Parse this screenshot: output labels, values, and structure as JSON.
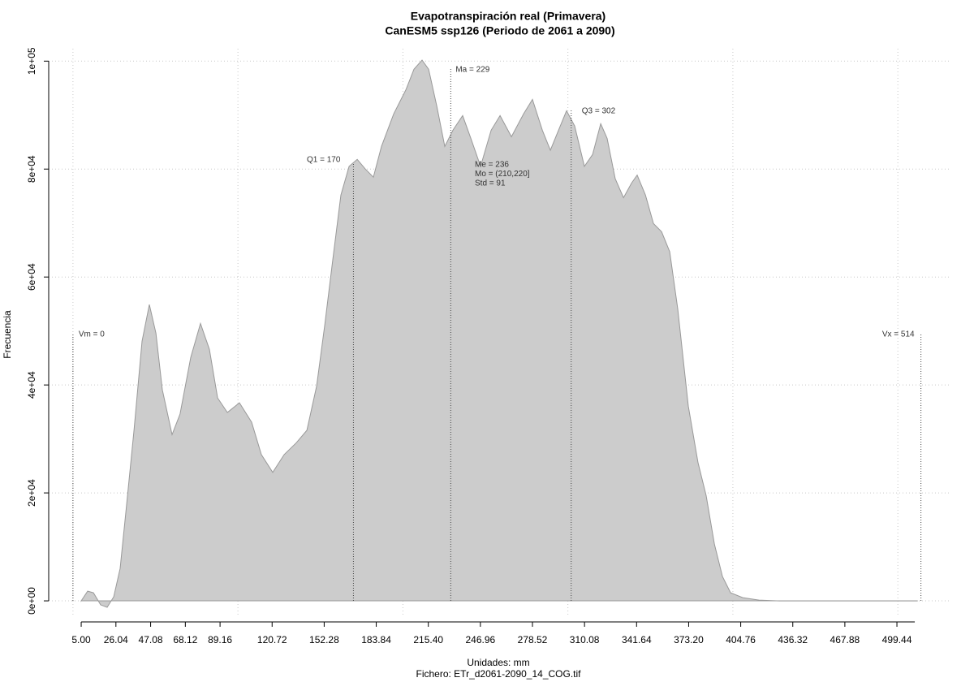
{
  "chart_data": {
    "type": "area",
    "title": "Evapotranspiración real (Primavera)",
    "subtitle": "CanESM5 ssp126 (Periodo de 2061 a 2090)",
    "xlabel": "Unidades: mm",
    "caption": "Fichero: ETr_d2061-2090_14_COG.tif",
    "ylabel": "Frecuencia",
    "color": "#cccccc",
    "x": [
      5,
      8.9,
      12.4,
      16.8,
      20.7,
      24.7,
      28.6,
      32.1,
      37,
      41.9,
      46.3,
      50.3,
      54.2,
      60.1,
      64.9,
      71.4,
      77.3,
      82.7,
      87.7,
      93.6,
      100.9,
      108.3,
      114.2,
      121.1,
      128,
      135.4,
      141.8,
      147.7,
      152.6,
      157.5,
      162.4,
      167.4,
      172.3,
      177.2,
      182.1,
      187,
      194.4,
      201.8,
      206.7,
      211.6,
      215.6,
      220.5,
      225.4,
      230.3,
      236.2,
      241.2,
      247.1,
      253.5,
      258.9,
      265.8,
      273.1,
      278.5,
      284.5,
      289.4,
      294.3,
      299.2,
      304.1,
      310,
      315,
      319.9,
      323.8,
      328.7,
      333.7,
      338.6,
      342,
      347,
      351.9,
      356.8,
      361.7,
      366.6,
      373,
      378.9,
      383.8,
      388.8,
      393.7,
      398.6,
      406,
      415.8,
      428.1,
      511.8
    ],
    "y": [
      0,
      1800,
      1500,
      -750,
      -1200,
      750,
      6000,
      16500,
      31600,
      48100,
      54900,
      49600,
      39100,
      30800,
      34600,
      45100,
      51400,
      46600,
      37600,
      34900,
      36700,
      33100,
      27100,
      23800,
      27100,
      29300,
      31600,
      39800,
      51100,
      63200,
      75200,
      80500,
      81800,
      80000,
      78500,
      84200,
      90200,
      94700,
      98500,
      100200,
      98500,
      91700,
      84200,
      87200,
      89900,
      85700,
      80500,
      87200,
      89900,
      86000,
      90200,
      92900,
      87200,
      83500,
      87200,
      90800,
      88000,
      80500,
      82700,
      88400,
      85700,
      78200,
      74700,
      77400,
      78900,
      75200,
      69900,
      68400,
      64700,
      54100,
      36100,
      25600,
      19500,
      10500,
      4500,
      1500,
      600,
      150,
      0,
      0
    ],
    "xlim": [
      -14.7,
      531.4
    ],
    "ylim": [
      -2700,
      102300
    ],
    "xticks": [
      {
        "value": 5,
        "label": "5.00"
      },
      26.04,
      47.08,
      68.12,
      89.16,
      120.72,
      152.28,
      183.84,
      {
        "value": 215.4,
        "label": "215.40"
      },
      246.96,
      278.52,
      310.08,
      341.64,
      {
        "value": 373.2,
        "label": "373.20"
      },
      404.76,
      436.32,
      467.88,
      499.44
    ],
    "yticks": [
      {
        "value": 0,
        "label": "0e+00"
      },
      {
        "value": 20000,
        "label": "2e+04"
      },
      {
        "value": 40000,
        "label": "4e+04"
      },
      {
        "value": 60000,
        "label": "6e+04"
      },
      {
        "value": 80000,
        "label": "8e+04"
      },
      {
        "value": 100000,
        "label": "1e+05"
      }
    ],
    "xgrid": [
      0,
      100,
      200,
      300,
      400,
      500
    ],
    "grid": true,
    "markers": [
      {
        "label": "Vm = 0",
        "value": 0
      },
      {
        "label": "Q1 = 170",
        "value": 170
      },
      {
        "label": "Ma = 229",
        "value": 229
      },
      {
        "label": "Q3 = 302",
        "value": 302
      },
      {
        "label": "Vx = 514",
        "value": 514
      }
    ],
    "stats": [
      "Me = 236",
      "Mo = (210,220]",
      "Std = 91"
    ]
  }
}
